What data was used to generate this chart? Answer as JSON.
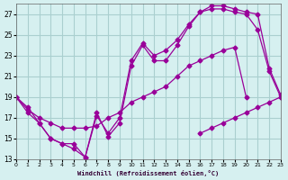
{
  "xlabel": "Windchill (Refroidissement éolien,°C)",
  "bg_color": "#d6f0f0",
  "grid_color": "#aacfcf",
  "line_color": "#990099",
  "xmin": 0,
  "xmax": 23,
  "ymin": 13,
  "ymax": 28,
  "yticks": [
    13,
    15,
    17,
    19,
    21,
    23,
    25,
    27
  ],
  "xticks": [
    0,
    1,
    2,
    3,
    4,
    5,
    6,
    7,
    8,
    9,
    10,
    11,
    12,
    13,
    14,
    15,
    16,
    17,
    18,
    19,
    20,
    21,
    22,
    23
  ],
  "lines": [
    {
      "x": [
        0,
        1,
        2,
        3,
        4,
        5,
        6,
        7,
        8,
        9,
        10,
        11,
        12,
        13,
        14,
        15,
        16,
        17,
        18,
        19,
        20,
        21,
        22,
        23
      ],
      "y": [
        19,
        18,
        16.5,
        15,
        14.5,
        14.5,
        13.2,
        17.5,
        15.2,
        16.5,
        22,
        24,
        22.5,
        22.5,
        24,
        25.8,
        27.2,
        27.5,
        27.5,
        27.2,
        27,
        25.5,
        21.5,
        19
      ]
    },
    {
      "x": [
        0,
        1,
        2,
        3,
        4,
        5,
        6,
        7,
        8,
        9,
        10,
        11,
        12,
        13,
        14,
        15,
        16,
        17,
        18,
        19,
        20,
        21,
        22,
        23
      ],
      "y": [
        19,
        17.5,
        16.5,
        15,
        14.5,
        14,
        13.2,
        17.2,
        15.5,
        17,
        22.5,
        24.2,
        23,
        23.5,
        24.5,
        26,
        27.2,
        27.8,
        27.8,
        27.5,
        27.2,
        27,
        21.8,
        19.2
      ]
    },
    {
      "x": [
        0,
        1,
        2,
        3,
        4,
        5,
        6,
        7,
        8,
        9,
        10,
        11,
        12,
        13,
        14,
        15,
        16,
        17,
        18,
        19,
        20,
        21,
        22,
        23
      ],
      "y": [
        19,
        17.8,
        17,
        16.5,
        16,
        16,
        16,
        16.2,
        17,
        17.5,
        18.5,
        19,
        19.5,
        20,
        21,
        22,
        22.5,
        23,
        23.5,
        23.8,
        19,
        null,
        null,
        null
      ]
    },
    {
      "x": [
        0,
        1,
        2,
        3,
        4,
        5,
        6,
        7,
        8,
        9,
        10,
        11,
        12,
        13,
        14,
        15,
        16,
        17,
        18,
        19,
        20,
        21,
        22,
        23
      ],
      "y": [
        null,
        null,
        null,
        null,
        null,
        null,
        null,
        null,
        null,
        null,
        null,
        null,
        null,
        null,
        null,
        null,
        15.5,
        16,
        16.5,
        17,
        17.5,
        18,
        18.5,
        19
      ]
    }
  ]
}
